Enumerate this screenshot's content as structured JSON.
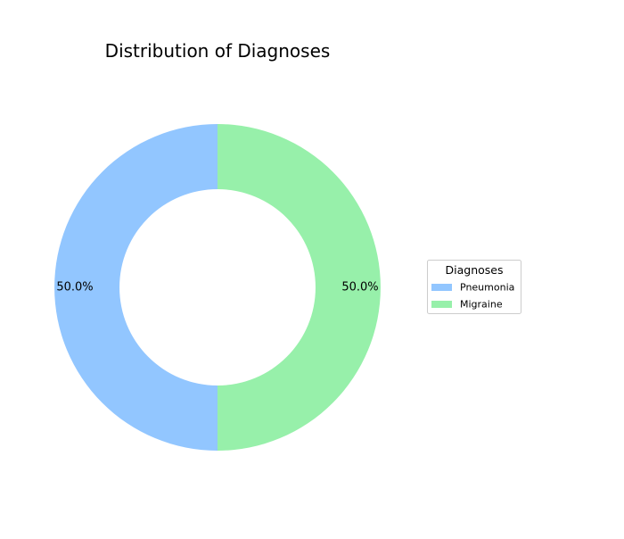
{
  "chart_data": {
    "type": "pie",
    "variant": "donut",
    "title": "Distribution of Diagnoses",
    "slices": [
      {
        "label": "Pneumonia",
        "value": 50.0,
        "pct_label": "50.0%",
        "color": "#92c6ff"
      },
      {
        "label": "Migraine",
        "value": 50.0,
        "pct_label": "50.0%",
        "color": "#97f0aa"
      }
    ],
    "legend": {
      "title": "Diagnoses",
      "placement": "right"
    }
  }
}
